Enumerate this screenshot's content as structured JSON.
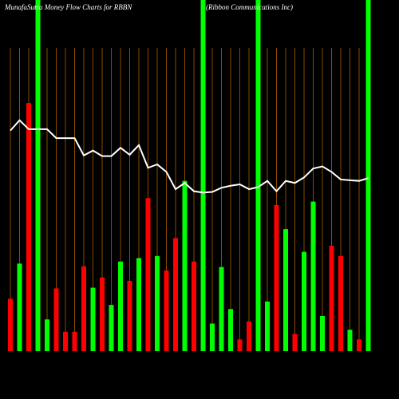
{
  "chart_data": {
    "type": "money-flow",
    "title": "MunafaSutra  Money Flow  Charts for RBBN",
    "subtitle": "(Ribbon  Communications Inc)",
    "ylim": [
      0,
      440
    ],
    "up_color": "#00ff00",
    "down_color": "#ff0000",
    "highlight_color": "#00ff00",
    "line_color": "#ffffff",
    "bars": {
      "values": [
        76,
        127,
        360,
        null,
        46,
        91,
        28,
        28,
        123,
        92,
        107,
        67,
        130,
        102,
        135,
        222,
        138,
        117,
        164,
        247,
        130,
        null,
        40,
        122,
        61,
        17,
        43,
        null,
        72,
        212,
        177,
        25,
        144,
        217,
        51,
        153,
        138,
        31,
        17,
        null
      ],
      "direction": [
        "down",
        "up",
        "down",
        null,
        "up",
        "down",
        "down",
        "down",
        "down",
        "up",
        "down",
        "up",
        "up",
        "down",
        "up",
        "down",
        "up",
        "down",
        "down",
        "up",
        "down",
        null,
        "up",
        "up",
        "up",
        "down",
        "down",
        null,
        "up",
        "down",
        "up",
        "down",
        "up",
        "up",
        "up",
        "down",
        "down",
        "up",
        "down",
        null
      ],
      "highlight": [
        false,
        false,
        false,
        true,
        false,
        false,
        false,
        false,
        false,
        false,
        false,
        false,
        false,
        false,
        false,
        false,
        false,
        false,
        false,
        false,
        false,
        true,
        false,
        false,
        false,
        false,
        false,
        true,
        false,
        false,
        false,
        false,
        false,
        false,
        false,
        false,
        false,
        false,
        false,
        true
      ]
    },
    "line": {
      "values": [
        320,
        335,
        322,
        322,
        322,
        309,
        309,
        309,
        284,
        291,
        283,
        283,
        295,
        285,
        299,
        266,
        271,
        260,
        235,
        244,
        232,
        230,
        231,
        237,
        240,
        242,
        235,
        238,
        247,
        232,
        247,
        244,
        252,
        265,
        268,
        260,
        249,
        248,
        247,
        251
      ]
    }
  }
}
